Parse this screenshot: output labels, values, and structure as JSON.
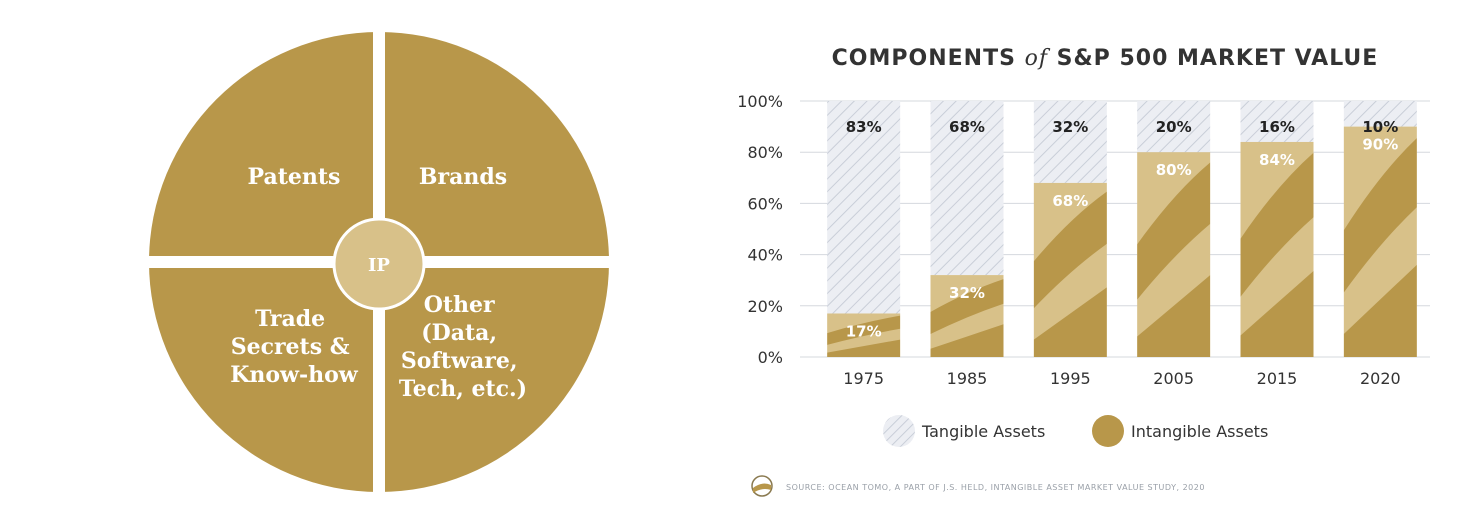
{
  "diagram": {
    "center_label": "IP",
    "quadrants": [
      {
        "lines": [
          "Patents"
        ]
      },
      {
        "lines": [
          "Brands"
        ]
      },
      {
        "lines": [
          "Trade",
          "Secrets &",
          "Know-how"
        ]
      },
      {
        "lines": [
          "Other",
          "(Data,",
          "Software,",
          "Tech, etc.)"
        ]
      }
    ]
  },
  "colors": {
    "gold": "#b8974a",
    "light_gold": "#d8c189",
    "tangible_bg": "#eceef3",
    "hatch": "#c9ced8"
  },
  "chart_data": {
    "type": "bar",
    "title_prefix": "COMPONENTS ",
    "title_italic": "of",
    "title_suffix": " S&P 500 MARKET VALUE",
    "categories": [
      "1975",
      "1985",
      "1995",
      "2005",
      "2015",
      "2020"
    ],
    "stacked": true,
    "series": [
      {
        "name": "Intangible Assets",
        "values": [
          17,
          32,
          68,
          80,
          84,
          90
        ]
      },
      {
        "name": "Tangible Assets",
        "values": [
          83,
          68,
          32,
          20,
          16,
          10
        ]
      }
    ],
    "intangible_labels": [
      "17%",
      "32%",
      "68%",
      "80%",
      "84%",
      "90%"
    ],
    "tangible_labels": [
      "83%",
      "68%",
      "32%",
      "20%",
      "16%",
      "10%"
    ],
    "yticks": [
      "0%",
      "20%",
      "40%",
      "60%",
      "80%",
      "100%"
    ],
    "ylim": [
      0,
      100
    ],
    "grid": true,
    "legend_position": "bottom",
    "source": "SOURCE:  OCEAN TOMO, A PART OF J.S. HELD, INTANGIBLE ASSET MARKET VALUE STUDY, 2020"
  }
}
